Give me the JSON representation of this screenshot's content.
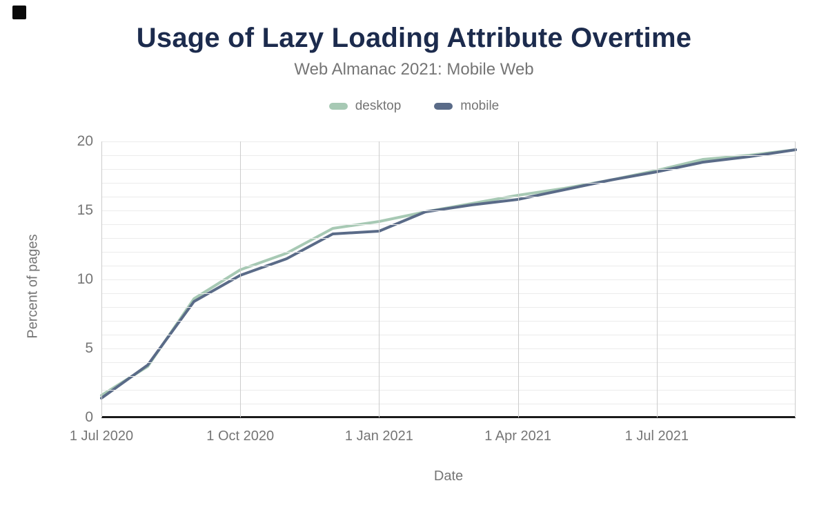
{
  "corner_mark": {
    "color": "#0a0a0a"
  },
  "colors": {
    "title": "#1c2b4d",
    "muted_text": "#757575",
    "grid_minor": "#ebebeb",
    "grid_major_vertical": "#cccccc",
    "axis_line": "#1a1a1a",
    "desktop": "#a7c9b4",
    "mobile": "#5a6b88"
  },
  "chart_data": {
    "type": "line",
    "title": "Usage of Lazy Loading Attribute Overtime",
    "subtitle": "Web Almanac 2021: Mobile Web",
    "xlabel": "Date",
    "ylabel": "Percent of pages",
    "ylim": [
      0,
      20
    ],
    "y_ticks": [
      0,
      5,
      10,
      15,
      20
    ],
    "grid": "minor horizontal every 1 unit; vertical gridlines at quarterly ticks",
    "legend_position": "top",
    "x": [
      "1 Jul 2020",
      "1 Aug 2020",
      "1 Sep 2020",
      "1 Oct 2020",
      "1 Nov 2020",
      "1 Dec 2020",
      "1 Jan 2021",
      "1 Feb 2021",
      "1 Mar 2021",
      "1 Apr 2021",
      "1 May 2021",
      "1 Jun 2021",
      "1 Jul 2021",
      "1 Aug 2021",
      "1 Sep 2021",
      "1 Oct 2021"
    ],
    "x_tick_labels": [
      "1 Jul 2020",
      "1 Oct 2020",
      "1 Jan 2021",
      "1 Apr 2021",
      "1 Jul 2021"
    ],
    "x_tick_month_indexes": [
      0,
      3,
      6,
      9,
      12
    ],
    "v_gridline_month_indexes": [
      0,
      3,
      6,
      9,
      12,
      15
    ],
    "series": [
      {
        "name": "desktop",
        "color": "#a7c9b4",
        "values": [
          1.6,
          3.7,
          8.6,
          10.7,
          11.9,
          13.7,
          14.2,
          14.9,
          15.5,
          16.1,
          16.6,
          17.2,
          17.9,
          18.7,
          19.0,
          19.4
        ]
      },
      {
        "name": "mobile",
        "color": "#5a6b88",
        "values": [
          1.4,
          3.8,
          8.4,
          10.3,
          11.5,
          13.3,
          13.5,
          14.9,
          15.4,
          15.8,
          16.5,
          17.2,
          17.8,
          18.5,
          18.9,
          19.4
        ]
      }
    ]
  }
}
